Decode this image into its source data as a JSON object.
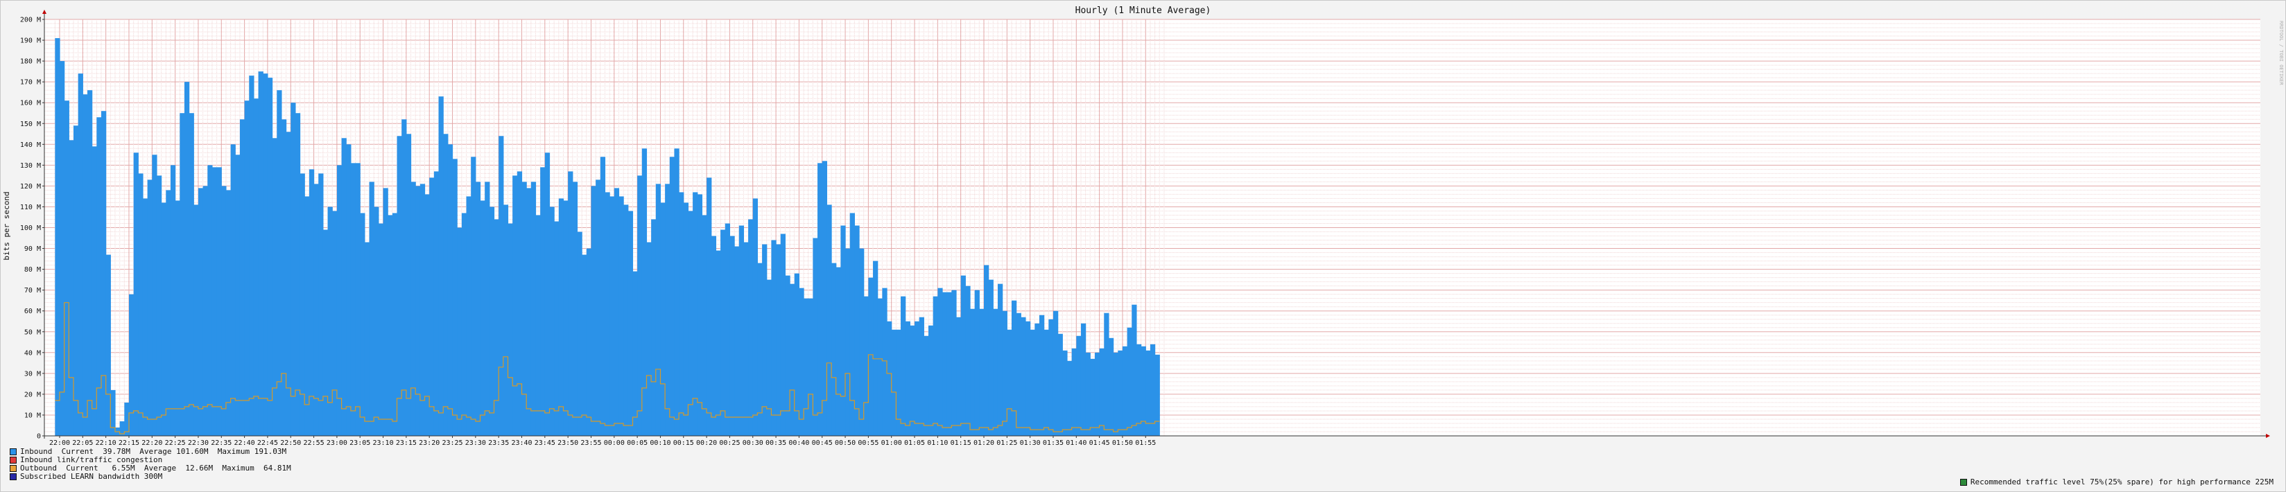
{
  "chart_data": {
    "type": "area",
    "title": "Hourly (1 Minute Average)",
    "ylabel": "bits per second",
    "ylim": [
      0,
      200
    ],
    "y_unit": "M",
    "y_ticks": [
      "0",
      "10 M",
      "20 M",
      "30 M",
      "40 M",
      "50 M",
      "60 M",
      "70 M",
      "80 M",
      "90 M",
      "100 M",
      "110 M",
      "120 M",
      "130 M",
      "140 M",
      "150 M",
      "160 M",
      "170 M",
      "180 M",
      "190 M",
      "200 M"
    ],
    "x_ticks": [
      "22:00",
      "22:05",
      "22:10",
      "22:15",
      "22:20",
      "22:25",
      "22:30",
      "22:35",
      "22:40",
      "22:45",
      "22:50",
      "22:55",
      "23:00",
      "23:05",
      "23:10",
      "23:15",
      "23:20",
      "23:25",
      "23:30",
      "23:35",
      "23:40",
      "23:45",
      "23:50",
      "23:55",
      "00:00",
      "00:05",
      "00:10",
      "00:15",
      "00:20",
      "00:25",
      "00:30",
      "00:35",
      "00:40",
      "00:45",
      "00:50",
      "00:55",
      "01:00",
      "01:05",
      "01:10",
      "01:15",
      "01:20",
      "01:25",
      "01:30",
      "01:35",
      "01:40",
      "01:45",
      "01:50",
      "01:55"
    ],
    "grid": true,
    "x": {
      "start": "21:59",
      "step_minutes": 1
    },
    "series": [
      {
        "name": "Inbound",
        "style": "filled-steps",
        "color": "#2b92e8",
        "values": [
          191,
          180,
          161,
          142,
          149,
          174,
          164,
          166,
          139,
          153,
          156,
          87,
          22,
          4,
          7,
          16,
          68,
          136,
          126,
          114,
          123,
          135,
          125,
          112,
          118,
          130,
          113,
          155,
          170,
          155,
          111,
          119,
          120,
          130,
          129,
          129,
          120,
          118,
          140,
          135,
          152,
          161,
          173,
          162,
          175,
          174,
          172,
          143,
          166,
          152,
          146,
          160,
          155,
          126,
          115,
          128,
          121,
          126,
          99,
          110,
          108,
          130,
          143,
          140,
          131,
          131,
          107,
          93,
          122,
          110,
          102,
          119,
          106,
          107,
          144,
          152,
          145,
          122,
          120,
          121,
          116,
          124,
          127,
          163,
          145,
          140,
          133,
          100,
          107,
          115,
          134,
          122,
          113,
          122,
          110,
          104,
          144,
          111,
          102,
          125,
          127,
          122,
          119,
          122,
          106,
          129,
          136,
          110,
          103,
          114,
          113,
          127,
          122,
          98,
          87,
          90,
          120,
          123,
          134,
          117,
          115,
          119,
          115,
          111,
          108,
          79,
          125,
          138,
          93,
          104,
          121,
          112,
          121,
          134,
          138,
          117,
          112,
          108,
          117,
          116,
          106,
          124,
          96,
          89,
          99,
          102,
          96,
          91,
          101,
          93,
          104,
          114,
          83,
          92,
          75,
          94,
          92,
          97,
          77,
          73,
          78,
          71,
          66,
          66,
          95,
          131,
          132,
          111,
          83,
          81,
          101,
          90,
          107,
          101,
          90,
          67,
          76,
          84,
          66,
          71,
          55,
          51,
          51,
          67,
          55,
          53,
          55,
          57,
          48,
          53,
          67,
          71,
          69,
          69,
          70,
          57,
          77,
          72,
          61,
          70,
          61,
          82,
          75,
          61,
          73,
          60,
          51,
          65,
          59,
          57,
          55,
          51,
          54,
          58,
          51,
          56,
          60,
          49,
          41,
          36,
          42,
          48,
          54,
          40,
          37,
          40,
          42,
          59,
          47,
          40,
          41,
          43,
          52,
          63,
          44,
          43,
          41,
          44,
          39
        ]
      },
      {
        "name": "Outbound",
        "style": "steps",
        "color": "#d49a2b",
        "values": [
          17,
          21,
          64,
          28,
          17,
          11,
          9,
          17,
          13,
          23,
          29,
          20,
          4,
          2,
          1,
          2,
          11,
          12,
          11,
          9,
          8,
          8,
          9,
          10,
          13,
          13,
          13,
          13,
          14,
          15,
          14,
          13,
          14,
          15,
          14,
          14,
          13,
          16,
          18,
          17,
          17,
          17,
          18,
          19,
          18,
          18,
          17,
          23,
          26,
          30,
          23,
          19,
          22,
          20,
          15,
          19,
          18,
          17,
          19,
          16,
          22,
          18,
          13,
          14,
          12,
          14,
          9,
          7,
          7,
          9,
          8,
          8,
          8,
          7,
          18,
          22,
          18,
          23,
          20,
          17,
          19,
          14,
          12,
          11,
          14,
          13,
          10,
          8,
          10,
          9,
          8,
          7,
          10,
          12,
          11,
          17,
          33,
          38,
          28,
          24,
          25,
          20,
          13,
          12,
          12,
          12,
          11,
          13,
          12,
          14,
          12,
          10,
          9,
          9,
          10,
          9,
          7,
          7,
          6,
          5,
          5,
          6,
          6,
          5,
          5,
          9,
          12,
          23,
          29,
          26,
          32,
          25,
          13,
          9,
          8,
          11,
          10,
          15,
          18,
          16,
          13,
          11,
          9,
          10,
          12,
          9,
          9,
          9,
          9,
          9,
          9,
          10,
          11,
          14,
          13,
          10,
          10,
          12,
          12,
          22,
          12,
          8,
          13,
          20,
          10,
          11,
          17,
          35,
          28,
          20,
          19,
          30,
          17,
          13,
          8,
          16,
          39,
          37,
          37,
          36,
          30,
          21,
          8,
          6,
          5,
          7,
          6,
          6,
          5,
          5,
          6,
          5,
          4,
          4,
          5,
          5,
          6,
          6,
          3,
          3,
          4,
          4,
          3,
          4,
          5,
          7,
          13,
          12,
          4,
          4,
          4,
          3,
          3,
          3,
          4,
          3,
          2,
          2,
          3,
          3,
          4,
          4,
          3,
          3,
          4,
          4,
          5,
          3,
          3,
          2,
          3,
          3,
          4,
          5,
          6,
          7,
          6,
          6,
          7
        ]
      }
    ]
  },
  "legend": [
    {
      "label": "Inbound",
      "color": "#2b92e8",
      "text": "Current  39.78M  Average 101.60M  Maximum 191.03M"
    },
    {
      "label": "Inbound link/traffic congestion",
      "color": "#e03a3a",
      "text": ""
    },
    {
      "label": "Outbound",
      "color": "#e8a33a",
      "text": "Current   6.55M  Average  12.66M  Maximum  64.81M"
    },
    {
      "label": "Subscribed LEARN bandwidth 300M",
      "color": "#2a2aa6",
      "text": ""
    }
  ],
  "recommendation": {
    "color": "#2d8a3a",
    "text": "Recommended traffic level 75%(25% spare) for high performance 225M"
  },
  "watermark": "RRDTOOL / TOBI OETIKER"
}
